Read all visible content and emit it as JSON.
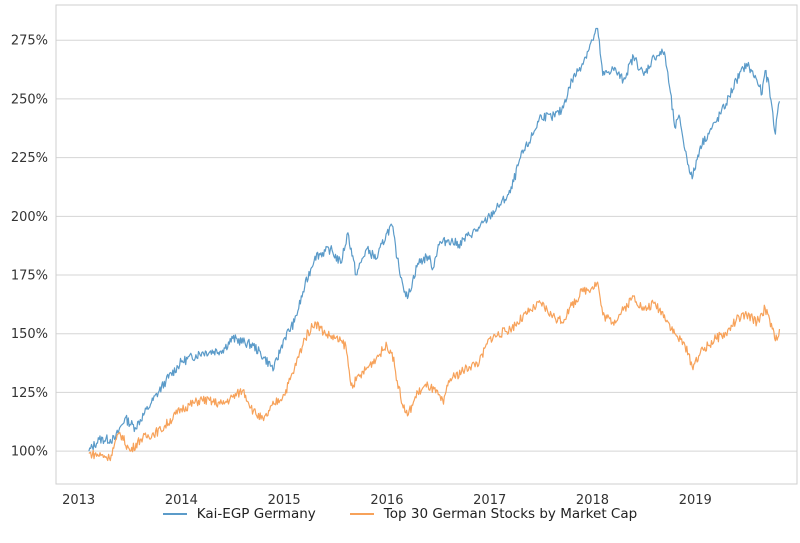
{
  "chart_data": {
    "type": "line",
    "title": "",
    "xlabel": "",
    "ylabel": "",
    "xlim": [
      2012.78,
      2019.99
    ],
    "ylim": [
      86,
      290
    ],
    "grid": "horizontal",
    "legend_position": "bottom-center",
    "x_ticks": [
      "2013",
      "2014",
      "2015",
      "2016",
      "2017",
      "2018",
      "2019"
    ],
    "y_ticks": [
      "100%",
      "125%",
      "150%",
      "175%",
      "200%",
      "225%",
      "250%",
      "275%"
    ],
    "series": [
      {
        "name": "Kai-EGP Germany",
        "color": "#5b9bc9",
        "x": [
          2013.1,
          2013.2,
          2013.35,
          2013.45,
          2013.55,
          2013.7,
          2013.85,
          2014.0,
          2014.2,
          2014.4,
          2014.5,
          2014.7,
          2014.8,
          2014.9,
          2015.0,
          2015.1,
          2015.2,
          2015.3,
          2015.45,
          2015.55,
          2015.62,
          2015.7,
          2015.8,
          2015.9,
          2016.0,
          2016.05,
          2016.1,
          2016.15,
          2016.2,
          2016.3,
          2016.4,
          2016.45,
          2016.5,
          2016.6,
          2016.7,
          2016.8,
          2016.9,
          2017.0,
          2017.1,
          2017.2,
          2017.3,
          2017.4,
          2017.5,
          2017.6,
          2017.7,
          2017.8,
          2017.9,
          2018.0,
          2018.05,
          2018.1,
          2018.2,
          2018.3,
          2018.4,
          2018.5,
          2018.6,
          2018.7,
          2018.75,
          2018.8,
          2018.85,
          2018.9,
          2018.97,
          2019.05,
          2019.2,
          2019.3,
          2019.4,
          2019.5,
          2019.6,
          2019.65,
          2019.68,
          2019.72,
          2019.78,
          2019.8,
          2019.82
        ],
        "y": [
          100,
          105,
          105,
          114,
          110,
          120,
          130,
          138,
          142,
          143,
          148,
          145,
          140,
          135,
          148,
          155,
          170,
          183,
          186,
          180,
          193,
          175,
          186,
          182,
          193,
          196,
          182,
          172,
          165,
          180,
          183,
          178,
          188,
          190,
          188,
          192,
          195,
          200,
          205,
          210,
          225,
          233,
          243,
          242,
          245,
          258,
          265,
          275,
          280,
          260,
          263,
          258,
          268,
          260,
          268,
          270,
          255,
          238,
          242,
          228,
          216,
          230,
          240,
          248,
          258,
          265,
          258,
          252,
          262,
          255,
          235,
          244,
          249
        ]
      },
      {
        "name": "Top 30 German Stocks by Market Cap",
        "color": "#f7a25a",
        "x": [
          2013.1,
          2013.25,
          2013.3,
          2013.4,
          2013.5,
          2013.6,
          2013.8,
          2014.0,
          2014.2,
          2014.4,
          2014.5,
          2014.6,
          2014.7,
          2014.8,
          2014.9,
          2015.0,
          2015.1,
          2015.2,
          2015.3,
          2015.4,
          2015.5,
          2015.6,
          2015.65,
          2015.7,
          2015.8,
          2015.9,
          2016.0,
          2016.05,
          2016.1,
          2016.15,
          2016.2,
          2016.3,
          2016.4,
          2016.5,
          2016.55,
          2016.6,
          2016.8,
          2016.9,
          2017.0,
          2017.2,
          2017.4,
          2017.5,
          2017.6,
          2017.7,
          2017.8,
          2017.9,
          2018.0,
          2018.05,
          2018.1,
          2018.2,
          2018.3,
          2018.4,
          2018.5,
          2018.6,
          2018.7,
          2018.8,
          2018.9,
          2018.97,
          2019.05,
          2019.2,
          2019.3,
          2019.4,
          2019.5,
          2019.6,
          2019.68,
          2019.75,
          2019.78,
          2019.82
        ],
        "y": [
          99,
          98,
          97,
          108,
          100,
          105,
          109,
          118,
          122,
          120,
          123,
          126,
          117,
          113,
          120,
          124,
          135,
          148,
          155,
          150,
          148,
          145,
          128,
          130,
          135,
          140,
          145,
          142,
          130,
          120,
          115,
          125,
          128,
          124,
          120,
          130,
          136,
          138,
          148,
          152,
          160,
          163,
          158,
          155,
          162,
          168,
          170,
          172,
          158,
          155,
          160,
          166,
          160,
          163,
          158,
          150,
          145,
          136,
          142,
          148,
          150,
          156,
          158,
          155,
          161,
          152,
          147,
          152
        ]
      }
    ]
  }
}
